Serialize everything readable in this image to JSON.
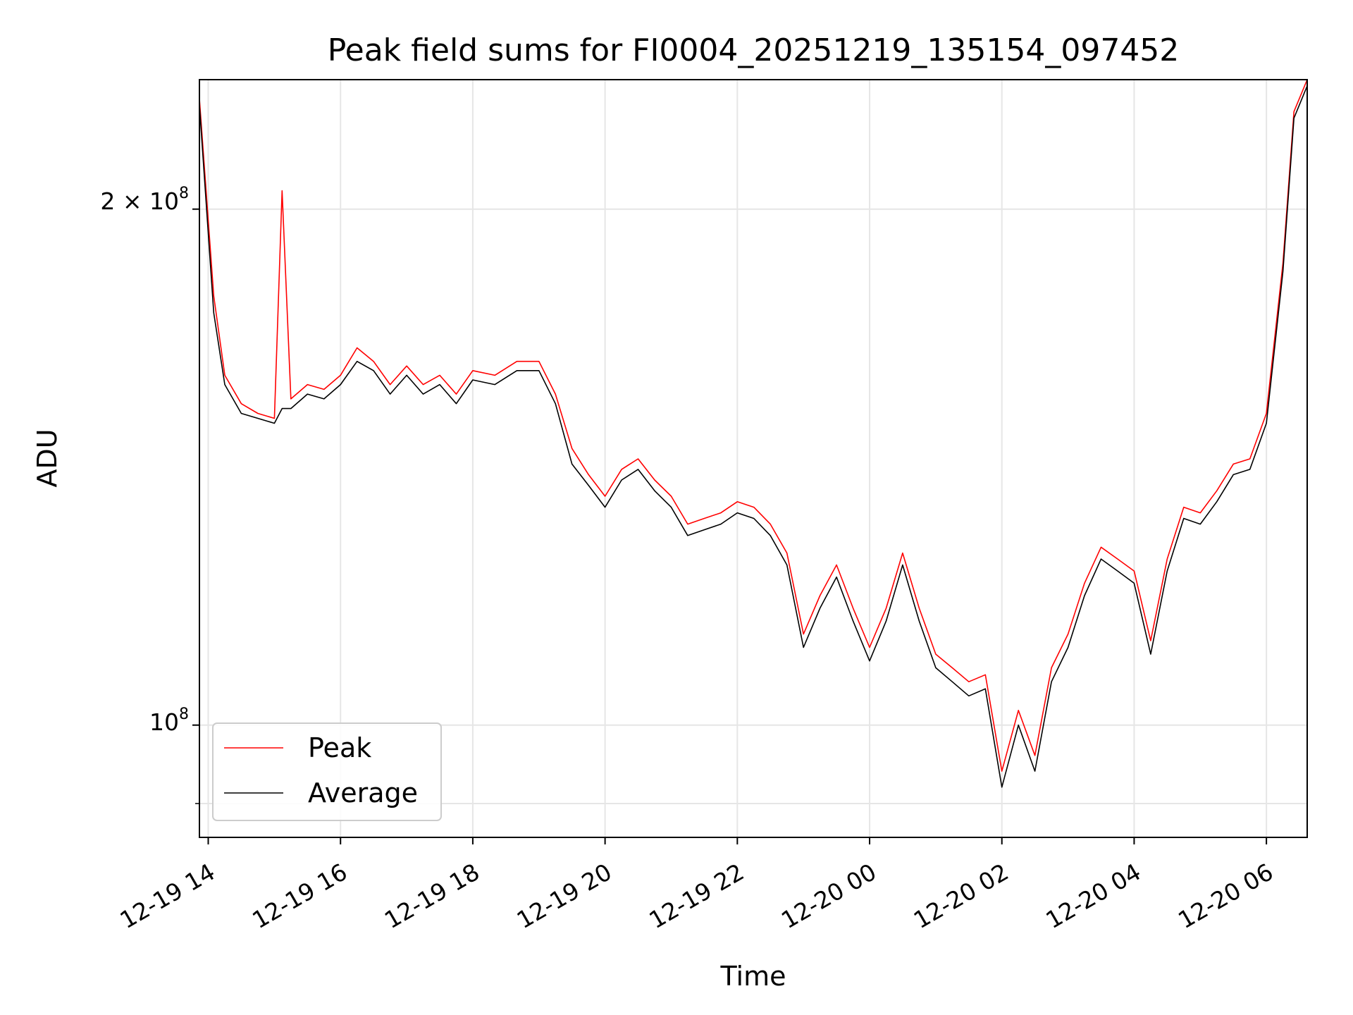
{
  "chart_data": {
    "type": "line",
    "title": "Peak field sums for FI0004_20251219_135154_097452",
    "xlabel": "Time",
    "ylabel": "ADU",
    "x_ticks": [
      "12-19 14",
      "12-19 16",
      "12-19 18",
      "12-19 20",
      "12-19 22",
      "12-20 00",
      "12-20 02",
      "12-20 04",
      "12-20 06"
    ],
    "y_tick_labels": {
      "major_2e8": "2 × 10",
      "major_2e8_exp": "8",
      "major_1e8": "10",
      "major_1e8_exp": "8"
    },
    "yscale": "log",
    "xlim": [
      "2025-12-19 13:52",
      "2025-12-20 06:37"
    ],
    "ylim": [
      86000000,
      238000000
    ],
    "grid": true,
    "legend_position": "lower-left",
    "colors": {
      "peak": "#ff0000",
      "average": "#000000",
      "grid": "#e6e6e6"
    },
    "series": [
      {
        "name": "Peak",
        "x": [
          "2025-12-19 13:52",
          "2025-12-19 14:05",
          "2025-12-19 14:15",
          "2025-12-19 14:30",
          "2025-12-19 14:45",
          "2025-12-19 15:00",
          "2025-12-19 15:07",
          "2025-12-19 15:15",
          "2025-12-19 15:30",
          "2025-12-19 15:45",
          "2025-12-19 16:00",
          "2025-12-19 16:15",
          "2025-12-19 16:30",
          "2025-12-19 16:45",
          "2025-12-19 17:00",
          "2025-12-19 17:15",
          "2025-12-19 17:30",
          "2025-12-19 17:45",
          "2025-12-19 18:00",
          "2025-12-19 18:20",
          "2025-12-19 18:40",
          "2025-12-19 19:00",
          "2025-12-19 19:15",
          "2025-12-19 19:30",
          "2025-12-19 19:45",
          "2025-12-19 20:00",
          "2025-12-19 20:15",
          "2025-12-19 20:30",
          "2025-12-19 20:45",
          "2025-12-19 21:00",
          "2025-12-19 21:15",
          "2025-12-19 21:30",
          "2025-12-19 21:45",
          "2025-12-19 22:00",
          "2025-12-19 22:15",
          "2025-12-19 22:30",
          "2025-12-19 22:45",
          "2025-12-19 23:00",
          "2025-12-19 23:15",
          "2025-12-19 23:30",
          "2025-12-19 23:45",
          "2025-12-20 00:00",
          "2025-12-20 00:15",
          "2025-12-20 00:30",
          "2025-12-20 00:45",
          "2025-12-20 01:00",
          "2025-12-20 01:15",
          "2025-12-20 01:30",
          "2025-12-20 01:45",
          "2025-12-20 02:00",
          "2025-12-20 02:15",
          "2025-12-20 02:30",
          "2025-12-20 02:45",
          "2025-12-20 03:00",
          "2025-12-20 03:15",
          "2025-12-20 03:30",
          "2025-12-20 03:45",
          "2025-12-20 04:00",
          "2025-12-20 04:15",
          "2025-12-20 04:30",
          "2025-12-20 04:45",
          "2025-12-20 05:00",
          "2025-12-20 05:15",
          "2025-12-20 05:30",
          "2025-12-20 05:45",
          "2025-12-20 06:00",
          "2025-12-20 06:15",
          "2025-12-20 06:25",
          "2025-12-20 06:37"
        ],
        "y": [
          232000000,
          178000000,
          160000000,
          154000000,
          152000000,
          151000000,
          205000000,
          155000000,
          158000000,
          157000000,
          160000000,
          166000000,
          163000000,
          158000000,
          162000000,
          158000000,
          160000000,
          156000000,
          161000000,
          160000000,
          163000000,
          163000000,
          156000000,
          145000000,
          140000000,
          136000000,
          141000000,
          143000000,
          139000000,
          136000000,
          131000000,
          132000000,
          133000000,
          135000000,
          134000000,
          131000000,
          126000000,
          113000000,
          119000000,
          124000000,
          117000000,
          111000000,
          117000000,
          126000000,
          117000000,
          110000000,
          108000000,
          106000000,
          107000000,
          94000000,
          102000000,
          96000000,
          108000000,
          113000000,
          121000000,
          127000000,
          125000000,
          123000000,
          112000000,
          125000000,
          134000000,
          133000000,
          137000000,
          142000000,
          143000000,
          152000000,
          186000000,
          228000000,
          238000000
        ]
      },
      {
        "name": "Average",
        "x": [
          "2025-12-19 13:52",
          "2025-12-19 14:05",
          "2025-12-19 14:15",
          "2025-12-19 14:30",
          "2025-12-19 14:45",
          "2025-12-19 15:00",
          "2025-12-19 15:07",
          "2025-12-19 15:15",
          "2025-12-19 15:30",
          "2025-12-19 15:45",
          "2025-12-19 16:00",
          "2025-12-19 16:15",
          "2025-12-19 16:30",
          "2025-12-19 16:45",
          "2025-12-19 17:00",
          "2025-12-19 17:15",
          "2025-12-19 17:30",
          "2025-12-19 17:45",
          "2025-12-19 18:00",
          "2025-12-19 18:20",
          "2025-12-19 18:40",
          "2025-12-19 19:00",
          "2025-12-19 19:15",
          "2025-12-19 19:30",
          "2025-12-19 19:45",
          "2025-12-19 20:00",
          "2025-12-19 20:15",
          "2025-12-19 20:30",
          "2025-12-19 20:45",
          "2025-12-19 21:00",
          "2025-12-19 21:15",
          "2025-12-19 21:30",
          "2025-12-19 21:45",
          "2025-12-19 22:00",
          "2025-12-19 22:15",
          "2025-12-19 22:30",
          "2025-12-19 22:45",
          "2025-12-19 23:00",
          "2025-12-19 23:15",
          "2025-12-19 23:30",
          "2025-12-19 23:45",
          "2025-12-20 00:00",
          "2025-12-20 00:15",
          "2025-12-20 00:30",
          "2025-12-20 00:45",
          "2025-12-20 01:00",
          "2025-12-20 01:15",
          "2025-12-20 01:30",
          "2025-12-20 01:45",
          "2025-12-20 02:00",
          "2025-12-20 02:15",
          "2025-12-20 02:30",
          "2025-12-20 02:45",
          "2025-12-20 03:00",
          "2025-12-20 03:15",
          "2025-12-20 03:30",
          "2025-12-20 03:45",
          "2025-12-20 04:00",
          "2025-12-20 04:15",
          "2025-12-20 04:30",
          "2025-12-20 04:45",
          "2025-12-20 05:00",
          "2025-12-20 05:15",
          "2025-12-20 05:30",
          "2025-12-20 05:45",
          "2025-12-20 06:00",
          "2025-12-20 06:15",
          "2025-12-20 06:25",
          "2025-12-20 06:37"
        ],
        "y": [
          230000000,
          174000000,
          158000000,
          152000000,
          151000000,
          150000000,
          153000000,
          153000000,
          156000000,
          155000000,
          158000000,
          163000000,
          161000000,
          156000000,
          160000000,
          156000000,
          158000000,
          154000000,
          159000000,
          158000000,
          161000000,
          161000000,
          154000000,
          142000000,
          138000000,
          134000000,
          139000000,
          141000000,
          137000000,
          134000000,
          129000000,
          130000000,
          131000000,
          133000000,
          132000000,
          129000000,
          124000000,
          111000000,
          117000000,
          122000000,
          115000000,
          109000000,
          115000000,
          124000000,
          115000000,
          108000000,
          106000000,
          104000000,
          105000000,
          92000000,
          100000000,
          94000000,
          106000000,
          111000000,
          119000000,
          125000000,
          123000000,
          121000000,
          110000000,
          123000000,
          132000000,
          131000000,
          135000000,
          140000000,
          141000000,
          150000000,
          184000000,
          226000000,
          236000000
        ]
      }
    ]
  }
}
